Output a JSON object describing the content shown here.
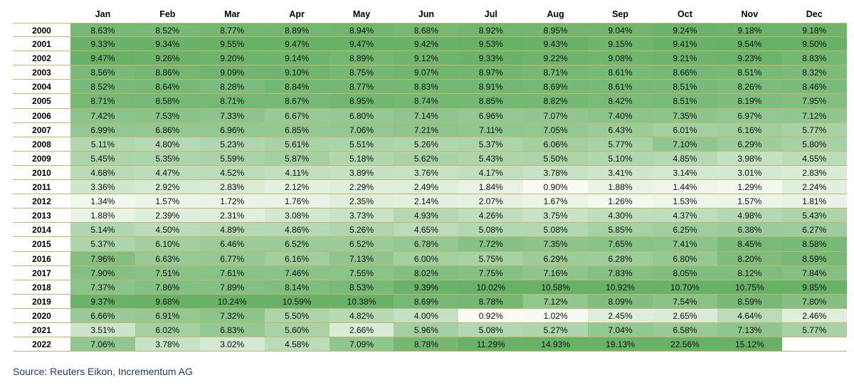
{
  "chart_data": {
    "type": "heatmap",
    "columns": [
      "Jan",
      "Feb",
      "Mar",
      "Apr",
      "May",
      "Jun",
      "Jul",
      "Aug",
      "Sep",
      "Oct",
      "Nov",
      "Dec"
    ],
    "rows": [
      "2000",
      "2001",
      "2002",
      "2003",
      "2004",
      "2005",
      "2006",
      "2007",
      "2008",
      "2009",
      "2010",
      "2011",
      "2012",
      "2013",
      "2014",
      "2015",
      "2016",
      "2017",
      "2018",
      "2019",
      "2020",
      "2021",
      "2022"
    ],
    "values": [
      [
        "8.63%",
        "8.52%",
        "8.77%",
        "8.89%",
        "8.94%",
        "8.68%",
        "8.92%",
        "8.95%",
        "9.04%",
        "9.24%",
        "9.18%",
        "9.18%"
      ],
      [
        "9.33%",
        "9.34%",
        "9.55%",
        "9.47%",
        "9.47%",
        "9.42%",
        "9.53%",
        "9.43%",
        "9.15%",
        "9.41%",
        "9.54%",
        "9.50%"
      ],
      [
        "9.47%",
        "9.26%",
        "9.20%",
        "9.14%",
        "8.89%",
        "9.12%",
        "9.33%",
        "9.22%",
        "9.08%",
        "9.21%",
        "9.23%",
        "8.83%"
      ],
      [
        "8.56%",
        "8.86%",
        "9.09%",
        "9.10%",
        "8.75%",
        "9.07%",
        "8.97%",
        "8.71%",
        "8.61%",
        "8.66%",
        "8.51%",
        "8.32%"
      ],
      [
        "8.52%",
        "8.64%",
        "8.28%",
        "8.84%",
        "8.77%",
        "8.83%",
        "8.91%",
        "8.69%",
        "8.61%",
        "8.51%",
        "8.26%",
        "8.46%"
      ],
      [
        "8.71%",
        "8.58%",
        "8.71%",
        "8.67%",
        "8.95%",
        "8.74%",
        "8.85%",
        "8.82%",
        "8.42%",
        "8.51%",
        "8.19%",
        "7.95%"
      ],
      [
        "7.42%",
        "7.53%",
        "7.33%",
        "6.67%",
        "6.80%",
        "7.14%",
        "6.96%",
        "7.07%",
        "7.40%",
        "7.35%",
        "6.97%",
        "7.12%"
      ],
      [
        "6.99%",
        "6.86%",
        "6.96%",
        "6.85%",
        "7.06%",
        "7.21%",
        "7.11%",
        "7.05%",
        "6.43%",
        "6.01%",
        "6.16%",
        "5.77%"
      ],
      [
        "5.11%",
        "4.80%",
        "5.23%",
        "5.61%",
        "5.51%",
        "5.26%",
        "5.37%",
        "6.06%",
        "5.77%",
        "7.10%",
        "6.29%",
        "5.80%"
      ],
      [
        "5.45%",
        "5.35%",
        "5.59%",
        "5.87%",
        "5.18%",
        "5.62%",
        "5.43%",
        "5.50%",
        "5.10%",
        "4.85%",
        "3.98%",
        "4.55%"
      ],
      [
        "4.68%",
        "4.47%",
        "4.52%",
        "4.11%",
        "3.89%",
        "3.76%",
        "4.17%",
        "3.78%",
        "3.41%",
        "3.14%",
        "3.01%",
        "2.83%"
      ],
      [
        "3.36%",
        "2.92%",
        "2.83%",
        "2.12%",
        "2.29%",
        "2.49%",
        "1.84%",
        "0.90%",
        "1.88%",
        "1.44%",
        "1.29%",
        "2.24%"
      ],
      [
        "1.34%",
        "1.57%",
        "1.72%",
        "1.76%",
        "2.35%",
        "2.14%",
        "2.07%",
        "1.67%",
        "1.26%",
        "1.53%",
        "1.57%",
        "1.81%"
      ],
      [
        "1.88%",
        "2.39%",
        "2.31%",
        "3.08%",
        "3.73%",
        "4.93%",
        "4.26%",
        "3.75%",
        "4.30%",
        "4.37%",
        "4.98%",
        "5.43%"
      ],
      [
        "5.14%",
        "4.50%",
        "4.89%",
        "4.86%",
        "5.26%",
        "4.65%",
        "5.08%",
        "5.08%",
        "5.85%",
        "6.25%",
        "6.38%",
        "6.27%"
      ],
      [
        "5.37%",
        "6.10%",
        "6.46%",
        "6.52%",
        "6.52%",
        "6.78%",
        "7.72%",
        "7.35%",
        "7.65%",
        "7.41%",
        "8.45%",
        "8.58%"
      ],
      [
        "7.96%",
        "6.63%",
        "6.77%",
        "6.16%",
        "7.13%",
        "6.00%",
        "5.75%",
        "6.29%",
        "6.28%",
        "6.80%",
        "8.20%",
        "8.59%"
      ],
      [
        "7.90%",
        "7.51%",
        "7.61%",
        "7.46%",
        "7.55%",
        "8.02%",
        "7.75%",
        "7.16%",
        "7.83%",
        "8.05%",
        "8.12%",
        "7.84%"
      ],
      [
        "7.37%",
        "7.86%",
        "7.89%",
        "8.14%",
        "8.53%",
        "9.39%",
        "10.02%",
        "10.58%",
        "10.92%",
        "10.70%",
        "10.75%",
        "9.85%"
      ],
      [
        "9.37%",
        "9.68%",
        "10.24%",
        "10.59%",
        "10.38%",
        "8.69%",
        "8.78%",
        "7.12%",
        "8.09%",
        "7.54%",
        "8.59%",
        "7.80%"
      ],
      [
        "6.66%",
        "6.91%",
        "7.32%",
        "5.50%",
        "4.82%",
        "4.00%",
        "0.92%",
        "1.02%",
        "2.45%",
        "2.65%",
        "4.64%",
        "2.46%"
      ],
      [
        "3.51%",
        "6.02%",
        "6.83%",
        "5.60%",
        "2.66%",
        "5.96%",
        "5.08%",
        "5.27%",
        "7.04%",
        "6.58%",
        "7.13%",
        "5.77%"
      ],
      [
        "7.06%",
        "3.78%",
        "3.02%",
        "4.58%",
        "7.09%",
        "8.78%",
        "11.29%",
        "14.93%",
        "19.13%",
        "22.56%",
        "15.12%",
        ""
      ]
    ]
  },
  "source": "Source: Reuters Eikon, Incrementum AG"
}
